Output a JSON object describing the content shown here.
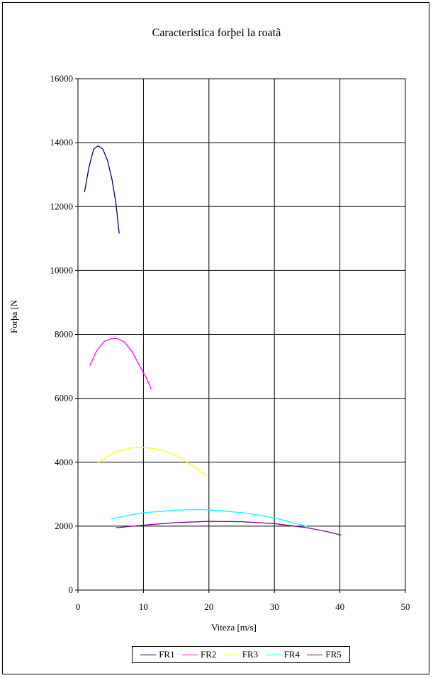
{
  "chart_data": {
    "type": "line",
    "title": "Caracteristica forþei la roatã",
    "xlabel": "Viteza [m/s]",
    "ylabel": "Forþa [N",
    "xlim": [
      0,
      50
    ],
    "ylim": [
      0,
      16000
    ],
    "x_ticks": [
      "0",
      "10",
      "20",
      "30",
      "40",
      "50"
    ],
    "y_ticks": [
      "0",
      "2000",
      "4000",
      "6000",
      "8000",
      "10000",
      "12000",
      "14000",
      "16000"
    ],
    "grid": true,
    "legend_position": "bottom",
    "series": [
      {
        "name": "FR1",
        "color": "#000066",
        "x": [
          1.0,
          1.7,
          2.4,
          3.1,
          3.8,
          4.5,
          5.2,
          5.8,
          6.3
        ],
        "y": [
          12450,
          13250,
          13800,
          13900,
          13800,
          13450,
          12850,
          12100,
          11150
        ]
      },
      {
        "name": "FR2",
        "color": "#ff00ff",
        "x": [
          1.8,
          2.9,
          4.0,
          5.0,
          6.0,
          7.1,
          8.3,
          9.5,
          10.5,
          11.2
        ],
        "y": [
          7020,
          7500,
          7780,
          7860,
          7870,
          7760,
          7450,
          6980,
          6620,
          6280
        ]
      },
      {
        "name": "FR3",
        "color": "#ffff00",
        "x": [
          3.0,
          5.5,
          8.0,
          10.0,
          12.5,
          15.0,
          17.5,
          19.5
        ],
        "y": [
          3980,
          4300,
          4450,
          4470,
          4400,
          4210,
          3900,
          3580
        ]
      },
      {
        "name": "FR4",
        "color": "#00ffff",
        "x": [
          5.0,
          10.0,
          15.0,
          18.5,
          22.0,
          26.0,
          30.0,
          35.0
        ],
        "y": [
          2230,
          2420,
          2500,
          2520,
          2480,
          2400,
          2260,
          1990
        ]
      },
      {
        "name": "FR5",
        "color": "#800080",
        "x": [
          5.8,
          10.0,
          15.0,
          20.0,
          25.0,
          30.0,
          35.0,
          38.0,
          40.2
        ],
        "y": [
          1950,
          2030,
          2110,
          2150,
          2140,
          2080,
          1950,
          1830,
          1720
        ]
      }
    ]
  }
}
